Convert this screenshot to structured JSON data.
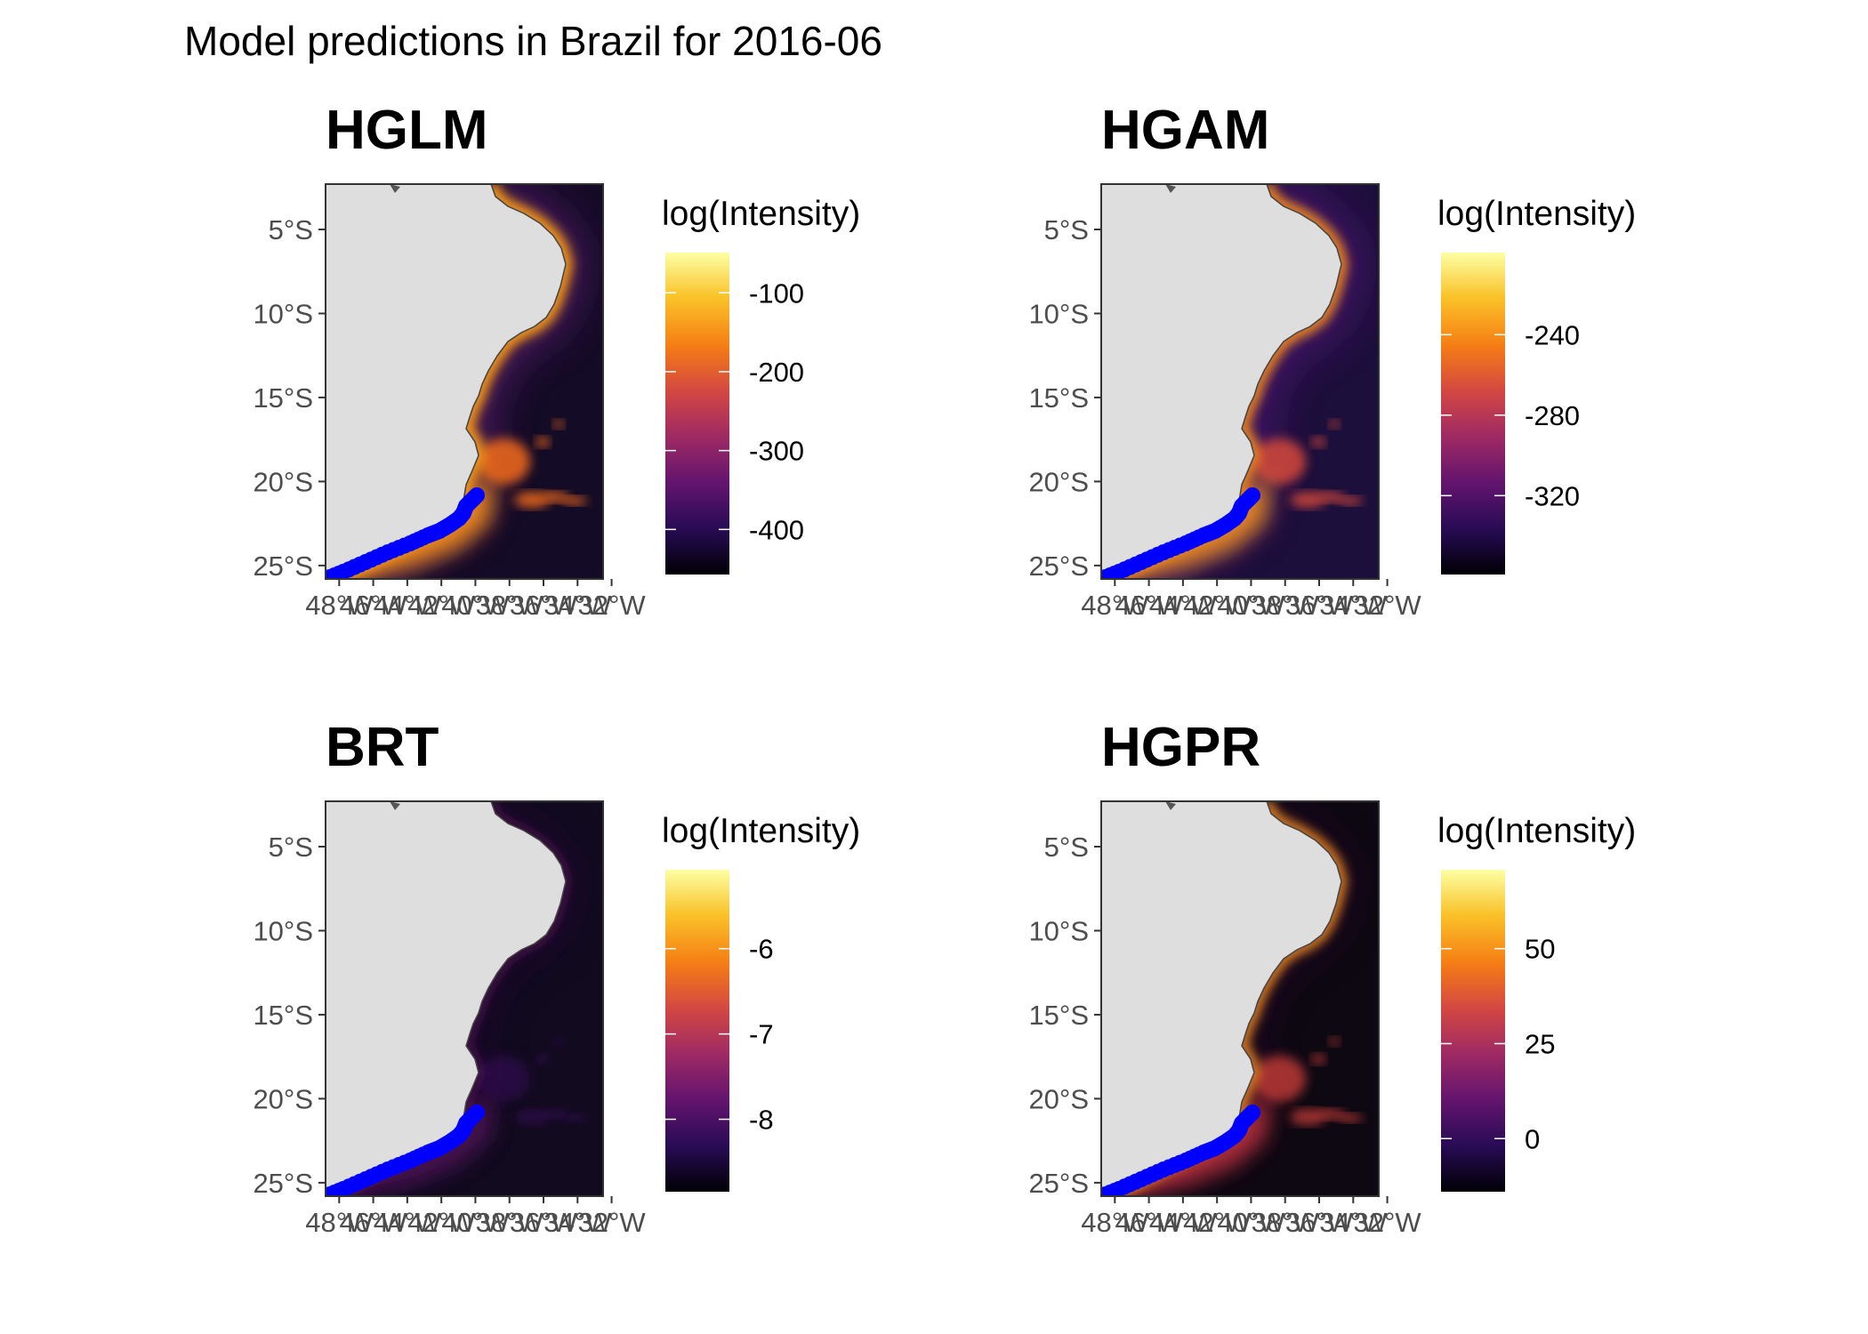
{
  "title": "Model predictions in Brazil for 2016-06",
  "panels": [
    {
      "name": "HGLM",
      "legend_title": "log(Intensity)",
      "legend_ticks": [
        {
          "label": "-100",
          "frac": 0.875
        },
        {
          "label": "-200",
          "frac": 0.63
        },
        {
          "label": "-300",
          "frac": 0.385
        },
        {
          "label": "-400",
          "frac": 0.14
        }
      ]
    },
    {
      "name": "HGAM",
      "legend_title": "log(Intensity)",
      "legend_ticks": [
        {
          "label": "-240",
          "frac": 0.745
        },
        {
          "label": "-280",
          "frac": 0.495
        },
        {
          "label": "-320",
          "frac": 0.245
        }
      ]
    },
    {
      "name": "BRT",
      "legend_title": "log(Intensity)",
      "legend_ticks": [
        {
          "label": "-6",
          "frac": 0.755
        },
        {
          "label": "-7",
          "frac": 0.49
        },
        {
          "label": "-8",
          "frac": 0.225
        }
      ]
    },
    {
      "name": "HGPR",
      "legend_title": "log(Intensity)",
      "legend_ticks": [
        {
          "label": "50",
          "frac": 0.755
        },
        {
          "label": "25",
          "frac": 0.46
        },
        {
          "label": "0",
          "frac": 0.165
        }
      ]
    }
  ],
  "axes": {
    "y_ticks": [
      {
        "label": "5°S",
        "lat": -5
      },
      {
        "label": "10°S",
        "lat": -10
      },
      {
        "label": "15°S",
        "lat": -15
      },
      {
        "label": "20°S",
        "lat": -20
      },
      {
        "label": "25°S",
        "lat": -25
      }
    ],
    "x_ticks": [
      {
        "label": "48°W",
        "lon": -48
      },
      {
        "label": "46°W",
        "lon": -46
      },
      {
        "label": "44°W",
        "lon": -44
      },
      {
        "label": "42°W",
        "lon": -42
      },
      {
        "label": "40°W",
        "lon": -40
      },
      {
        "label": "38°W",
        "lon": -38
      },
      {
        "label": "36°W",
        "lon": -36
      },
      {
        "label": "34°W",
        "lon": -34
      },
      {
        "label": "32°W",
        "lon": -32
      }
    ],
    "lat_range": [
      -25.8,
      -2.3
    ],
    "lon_range": [
      -48.8,
      -32.5
    ]
  },
  "colors": {
    "land": "#dedede",
    "ocean_dark": "#0d0a17",
    "observations": "#0000ff",
    "coast_outline": "#444444",
    "colorscale": [
      "#000004",
      "#280b54",
      "#65156e",
      "#9f2a63",
      "#d44842",
      "#f57d15",
      "#fac228",
      "#fcffa4"
    ]
  }
}
